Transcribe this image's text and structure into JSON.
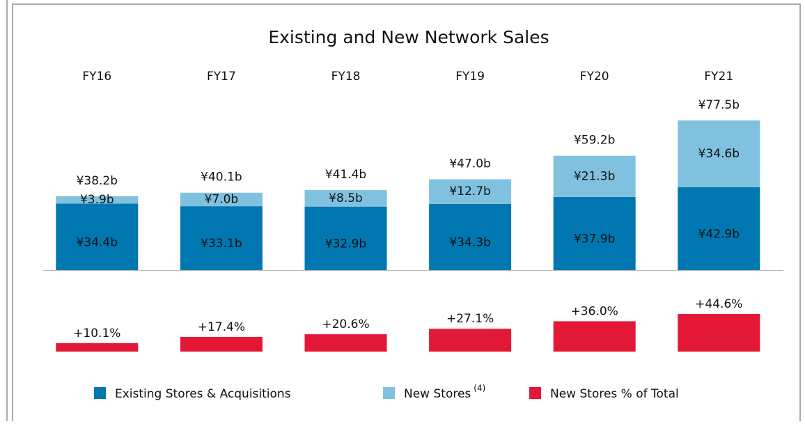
{
  "chart_data": [
    {
      "type": "stacked_bar",
      "title": "Existing and New Network Sales",
      "categories": [
        "FY16",
        "FY17",
        "FY18",
        "FY19",
        "FY20",
        "FY21"
      ],
      "series": [
        {
          "name": "Existing Stores & Acquisitions",
          "color": "#0077b0",
          "values": [
            34.4,
            33.1,
            32.9,
            34.3,
            37.9,
            42.9
          ],
          "value_labels": [
            "¥34.4b",
            "¥33.1b",
            "¥32.9b",
            "¥34.3b",
            "¥37.9b",
            "¥42.9b"
          ]
        },
        {
          "name": "New Stores",
          "footnote_marker": "(4)",
          "color": "#7fc1df",
          "values": [
            3.9,
            7.0,
            8.5,
            12.7,
            21.3,
            34.6
          ],
          "value_labels": [
            "¥3.9b",
            "¥7.0b",
            "¥8.5b",
            "¥12.7b",
            "¥21.3b",
            "¥34.6b"
          ]
        }
      ],
      "totals": {
        "values": [
          38.2,
          40.1,
          41.4,
          47.0,
          59.2,
          77.5
        ],
        "value_labels": [
          "¥38.2b",
          "¥40.1b",
          "¥41.4b",
          "¥47.0b",
          "¥59.2b",
          "¥77.5b"
        ]
      },
      "ylim": [
        0,
        80
      ]
    },
    {
      "type": "bar",
      "series": [
        {
          "name": "New Stores % of Total",
          "color": "#e31837",
          "values": [
            10.1,
            17.4,
            20.6,
            27.1,
            36.0,
            44.6
          ],
          "value_labels": [
            "+10.1%",
            "+17.4%",
            "+20.6%",
            "+27.1%",
            "+36.0%",
            "+44.6%"
          ]
        }
      ],
      "ylim": [
        0,
        50
      ]
    }
  ]
}
